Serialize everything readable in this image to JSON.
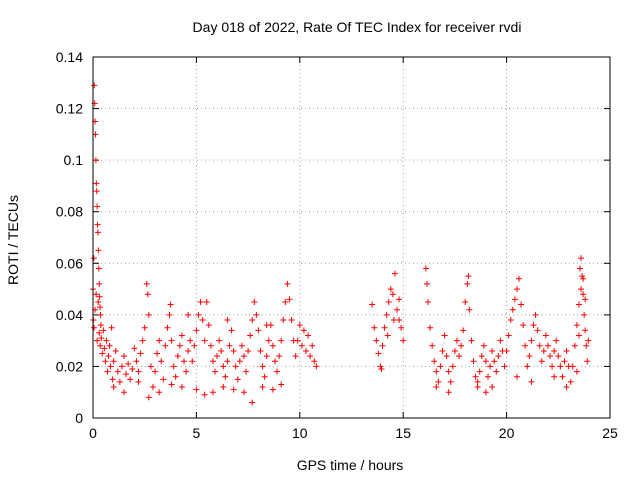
{
  "chart_data": {
    "type": "scatter",
    "title": "Day 018 of 2022, Rate Of TEC Index for receiver rvdi",
    "xlabel": "GPS time / hours",
    "ylabel": "ROTI / TECUs",
    "xlim": [
      0,
      25
    ],
    "ylim": [
      0,
      0.14
    ],
    "xticks": [
      0,
      5,
      10,
      15,
      20,
      25
    ],
    "yticks": [
      0,
      0.02,
      0.04,
      0.06,
      0.08,
      0.1,
      0.12,
      0.14
    ],
    "xtick_labels": [
      "0",
      "5",
      "10",
      "15",
      "20",
      "25"
    ],
    "ytick_labels": [
      "0",
      "0.02",
      "0.04",
      "0.06",
      "0.08",
      "0.1",
      "0.12",
      "0.14"
    ],
    "grid": true,
    "marker": "+",
    "colors": {
      "series": "#ff0000",
      "grid": "#a0a0a0",
      "axis": "#000000"
    },
    "series": [
      {
        "points": [
          [
            0.0,
            0.05
          ],
          [
            0.02,
            0.038
          ],
          [
            0.04,
            0.062
          ],
          [
            0.06,
            0.129
          ],
          [
            0.08,
            0.122
          ],
          [
            0.1,
            0.115
          ],
          [
            0.12,
            0.11
          ],
          [
            0.14,
            0.1
          ],
          [
            0.16,
            0.091
          ],
          [
            0.18,
            0.088
          ],
          [
            0.2,
            0.082
          ],
          [
            0.22,
            0.075
          ],
          [
            0.24,
            0.072
          ],
          [
            0.26,
            0.065
          ],
          [
            0.28,
            0.058
          ],
          [
            0.3,
            0.052
          ],
          [
            0.32,
            0.047
          ],
          [
            0.34,
            0.043
          ],
          [
            0.36,
            0.04
          ],
          [
            0.38,
            0.036
          ],
          [
            0.05,
            0.035
          ],
          [
            0.1,
            0.042
          ],
          [
            0.15,
            0.048
          ],
          [
            0.2,
            0.03
          ],
          [
            0.25,
            0.045
          ],
          [
            0.3,
            0.033
          ],
          [
            0.35,
            0.028
          ],
          [
            0.4,
            0.031
          ],
          [
            0.45,
            0.025
          ],
          [
            0.5,
            0.034
          ],
          [
            0.55,
            0.027
          ],
          [
            0.6,
            0.022
          ],
          [
            0.65,
            0.03
          ],
          [
            0.7,
            0.018
          ],
          [
            0.75,
            0.024
          ],
          [
            0.8,
            0.028
          ],
          [
            0.85,
            0.02
          ],
          [
            0.9,
            0.035
          ],
          [
            0.95,
            0.015
          ],
          [
            1.0,
            0.022
          ],
          [
            1.1,
            0.026
          ],
          [
            1.2,
            0.018
          ],
          [
            1.3,
            0.014
          ],
          [
            1.4,
            0.02
          ],
          [
            1.5,
            0.024
          ],
          [
            1.6,
            0.017
          ],
          [
            1.7,
            0.021
          ],
          [
            1.8,
            0.015
          ],
          [
            1.9,
            0.019
          ],
          [
            2.0,
            0.027
          ],
          [
            2.1,
            0.022
          ],
          [
            2.2,
            0.018
          ],
          [
            2.3,
            0.025
          ],
          [
            2.4,
            0.03
          ],
          [
            2.5,
            0.035
          ],
          [
            2.6,
            0.052
          ],
          [
            2.65,
            0.048
          ],
          [
            2.7,
            0.04
          ],
          [
            2.8,
            0.02
          ],
          [
            2.9,
            0.012
          ],
          [
            3.0,
            0.018
          ],
          [
            3.1,
            0.025
          ],
          [
            3.2,
            0.03
          ],
          [
            3.3,
            0.022
          ],
          [
            3.4,
            0.015
          ],
          [
            3.5,
            0.028
          ],
          [
            3.6,
            0.035
          ],
          [
            3.7,
            0.04
          ],
          [
            3.75,
            0.044
          ],
          [
            3.8,
            0.03
          ],
          [
            3.9,
            0.02
          ],
          [
            4.0,
            0.016
          ],
          [
            4.1,
            0.024
          ],
          [
            4.2,
            0.028
          ],
          [
            4.3,
            0.032
          ],
          [
            4.4,
            0.022
          ],
          [
            4.5,
            0.018
          ],
          [
            4.6,
            0.026
          ],
          [
            4.7,
            0.03
          ],
          [
            4.8,
            0.022
          ],
          [
            4.9,
            0.028
          ],
          [
            5.0,
            0.034
          ],
          [
            5.1,
            0.04
          ],
          [
            5.2,
            0.045
          ],
          [
            5.3,
            0.038
          ],
          [
            5.4,
            0.03
          ],
          [
            5.5,
            0.045
          ],
          [
            5.6,
            0.036
          ],
          [
            5.7,
            0.028
          ],
          [
            5.8,
            0.022
          ],
          [
            5.9,
            0.018
          ],
          [
            6.0,
            0.024
          ],
          [
            6.1,
            0.03
          ],
          [
            6.2,
            0.026
          ],
          [
            6.3,
            0.02
          ],
          [
            6.4,
            0.016
          ],
          [
            6.5,
            0.022
          ],
          [
            6.6,
            0.028
          ],
          [
            6.7,
            0.034
          ],
          [
            6.8,
            0.026
          ],
          [
            6.9,
            0.02
          ],
          [
            7.0,
            0.015
          ],
          [
            7.1,
            0.022
          ],
          [
            7.2,
            0.028
          ],
          [
            7.3,
            0.024
          ],
          [
            7.4,
            0.018
          ],
          [
            7.5,
            0.026
          ],
          [
            7.6,
            0.032
          ],
          [
            7.7,
            0.038
          ],
          [
            7.8,
            0.045
          ],
          [
            7.9,
            0.04
          ],
          [
            8.0,
            0.034
          ],
          [
            8.1,
            0.026
          ],
          [
            8.2,
            0.02
          ],
          [
            8.3,
            0.016
          ],
          [
            8.4,
            0.024
          ],
          [
            8.5,
            0.03
          ],
          [
            8.6,
            0.036
          ],
          [
            8.7,
            0.028
          ],
          [
            8.8,
            0.022
          ],
          [
            8.9,
            0.018
          ],
          [
            9.0,
            0.024
          ],
          [
            9.1,
            0.03
          ],
          [
            9.2,
            0.038
          ],
          [
            9.3,
            0.045
          ],
          [
            9.4,
            0.052
          ],
          [
            9.5,
            0.046
          ],
          [
            9.6,
            0.038
          ],
          [
            9.7,
            0.03
          ],
          [
            9.8,
            0.024
          ],
          [
            9.9,
            0.03
          ],
          [
            10.0,
            0.036
          ],
          [
            10.1,
            0.028
          ],
          [
            10.2,
            0.034
          ],
          [
            10.3,
            0.026
          ],
          [
            10.4,
            0.032
          ],
          [
            10.5,
            0.024
          ],
          [
            10.6,
            0.028
          ],
          [
            10.7,
            0.022
          ],
          [
            10.8,
            0.02
          ],
          [
            1.0,
            0.012
          ],
          [
            1.5,
            0.01
          ],
          [
            2.2,
            0.014
          ],
          [
            2.7,
            0.008
          ],
          [
            3.2,
            0.01
          ],
          [
            3.8,
            0.013
          ],
          [
            4.3,
            0.012
          ],
          [
            5.0,
            0.011
          ],
          [
            5.4,
            0.009
          ],
          [
            5.8,
            0.01
          ],
          [
            6.3,
            0.012
          ],
          [
            6.8,
            0.011
          ],
          [
            7.3,
            0.01
          ],
          [
            7.7,
            0.006
          ],
          [
            8.2,
            0.012
          ],
          [
            8.7,
            0.011
          ],
          [
            9.1,
            0.013
          ],
          [
            4.6,
            0.04
          ],
          [
            6.5,
            0.038
          ],
          [
            8.4,
            0.036
          ],
          [
            13.5,
            0.044
          ],
          [
            13.6,
            0.035
          ],
          [
            13.7,
            0.03
          ],
          [
            13.8,
            0.025
          ],
          [
            13.9,
            0.02
          ],
          [
            14.0,
            0.028
          ],
          [
            14.1,
            0.035
          ],
          [
            14.2,
            0.04
          ],
          [
            14.3,
            0.045
          ],
          [
            14.4,
            0.05
          ],
          [
            14.5,
            0.048
          ],
          [
            14.6,
            0.056
          ],
          [
            14.7,
            0.042
          ],
          [
            14.8,
            0.038
          ],
          [
            14.9,
            0.035
          ],
          [
            15.0,
            0.03
          ],
          [
            13.95,
            0.019
          ],
          [
            14.25,
            0.032
          ],
          [
            14.55,
            0.038
          ],
          [
            14.8,
            0.046
          ],
          [
            16.1,
            0.058
          ],
          [
            16.15,
            0.052
          ],
          [
            16.2,
            0.045
          ],
          [
            16.3,
            0.035
          ],
          [
            16.4,
            0.028
          ],
          [
            16.5,
            0.022
          ],
          [
            16.6,
            0.018
          ],
          [
            16.7,
            0.014
          ],
          [
            16.8,
            0.02
          ],
          [
            16.9,
            0.026
          ],
          [
            17.0,
            0.032
          ],
          [
            17.1,
            0.024
          ],
          [
            17.2,
            0.018
          ],
          [
            17.3,
            0.014
          ],
          [
            17.4,
            0.02
          ],
          [
            17.5,
            0.026
          ],
          [
            17.6,
            0.03
          ],
          [
            17.7,
            0.024
          ],
          [
            17.8,
            0.028
          ],
          [
            17.9,
            0.034
          ],
          [
            18.0,
            0.045
          ],
          [
            18.1,
            0.052
          ],
          [
            18.15,
            0.055
          ],
          [
            18.2,
            0.042
          ],
          [
            18.3,
            0.03
          ],
          [
            18.4,
            0.022
          ],
          [
            18.5,
            0.016
          ],
          [
            18.6,
            0.012
          ],
          [
            18.7,
            0.018
          ],
          [
            18.8,
            0.024
          ],
          [
            18.9,
            0.028
          ],
          [
            19.0,
            0.022
          ],
          [
            19.1,
            0.016
          ],
          [
            19.2,
            0.02
          ],
          [
            19.3,
            0.026
          ],
          [
            19.4,
            0.022
          ],
          [
            19.5,
            0.018
          ],
          [
            19.6,
            0.024
          ],
          [
            19.7,
            0.03
          ],
          [
            19.8,
            0.026
          ],
          [
            19.9,
            0.02
          ],
          [
            20.0,
            0.026
          ],
          [
            20.1,
            0.032
          ],
          [
            20.2,
            0.038
          ],
          [
            20.3,
            0.042
          ],
          [
            20.4,
            0.046
          ],
          [
            20.5,
            0.05
          ],
          [
            20.6,
            0.054
          ],
          [
            20.7,
            0.044
          ],
          [
            20.8,
            0.036
          ],
          [
            20.9,
            0.028
          ],
          [
            21.0,
            0.02
          ],
          [
            21.1,
            0.024
          ],
          [
            21.2,
            0.03
          ],
          [
            21.3,
            0.036
          ],
          [
            21.4,
            0.04
          ],
          [
            21.5,
            0.034
          ],
          [
            21.6,
            0.028
          ],
          [
            21.7,
            0.022
          ],
          [
            21.8,
            0.026
          ],
          [
            21.9,
            0.032
          ],
          [
            22.0,
            0.028
          ],
          [
            22.1,
            0.024
          ],
          [
            22.2,
            0.02
          ],
          [
            22.3,
            0.026
          ],
          [
            22.4,
            0.03
          ],
          [
            22.5,
            0.024
          ],
          [
            22.6,
            0.02
          ],
          [
            22.7,
            0.016
          ],
          [
            22.8,
            0.022
          ],
          [
            22.9,
            0.026
          ],
          [
            23.0,
            0.02
          ],
          [
            23.1,
            0.014
          ],
          [
            23.2,
            0.02
          ],
          [
            23.3,
            0.028
          ],
          [
            23.4,
            0.036
          ],
          [
            23.5,
            0.044
          ],
          [
            23.55,
            0.058
          ],
          [
            23.6,
            0.062
          ],
          [
            23.65,
            0.055
          ],
          [
            23.7,
            0.048
          ],
          [
            23.75,
            0.04
          ],
          [
            23.8,
            0.034
          ],
          [
            23.85,
            0.028
          ],
          [
            23.9,
            0.022
          ],
          [
            23.95,
            0.03
          ],
          [
            23.5,
            0.032
          ],
          [
            23.6,
            0.05
          ],
          [
            23.7,
            0.054
          ],
          [
            23.8,
            0.046
          ],
          [
            16.6,
            0.012
          ],
          [
            17.2,
            0.01
          ],
          [
            18.6,
            0.014
          ],
          [
            19.3,
            0.012
          ],
          [
            20.5,
            0.016
          ],
          [
            21.2,
            0.014
          ],
          [
            22.3,
            0.016
          ],
          [
            22.9,
            0.012
          ],
          [
            23.4,
            0.018
          ],
          [
            19.0,
            0.01
          ]
        ]
      }
    ]
  }
}
